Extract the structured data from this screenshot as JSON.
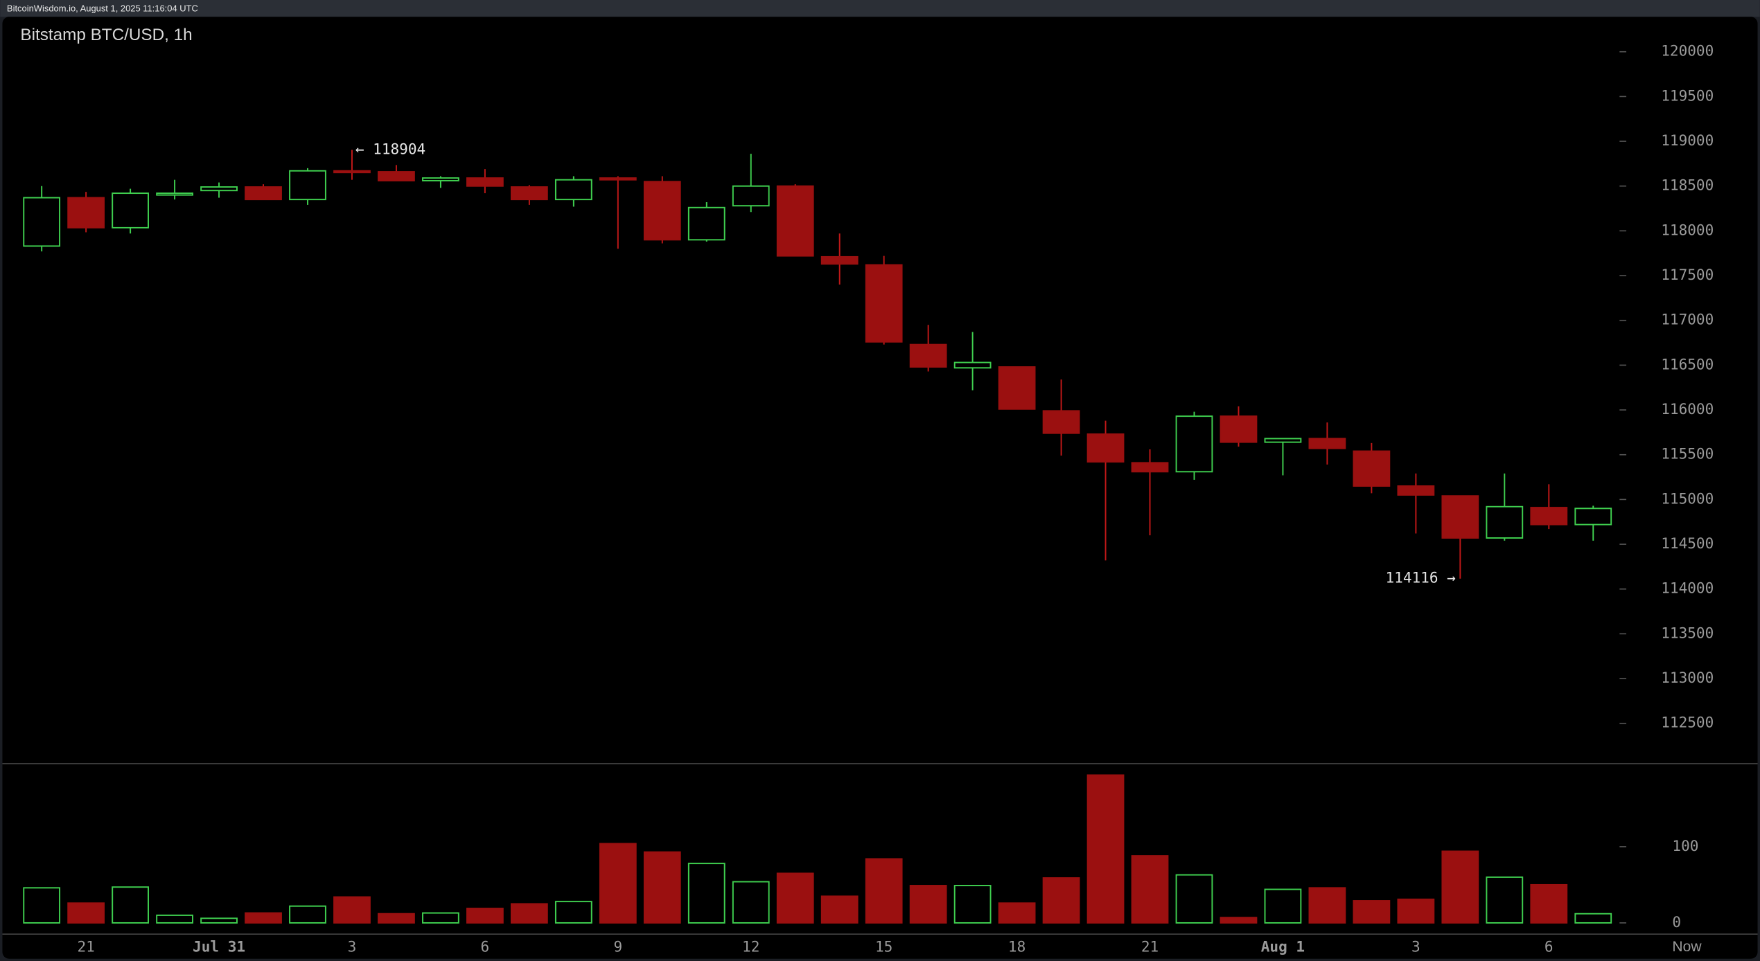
{
  "chart_data": {
    "type": "candlestick",
    "header": "BitcoinWisdom.io, August 1, 2025 11:16:04 UTC",
    "title": "Bitstamp BTC/USD, 1h",
    "categories": [
      null,
      "21",
      null,
      null,
      "Jul 31",
      null,
      null,
      "3",
      null,
      null,
      "6",
      null,
      null,
      "9",
      null,
      null,
      "12",
      null,
      null,
      "15",
      null,
      null,
      "18",
      null,
      null,
      "21",
      null,
      null,
      "Aug 1",
      null,
      null,
      "3",
      null,
      null,
      "6",
      null
    ],
    "now_label": "Now",
    "open": [
      117830,
      118370,
      118035,
      118400,
      118450,
      118490,
      118350,
      118670,
      118660,
      118560,
      118590,
      118490,
      118350,
      118590,
      118550,
      117900,
      118280,
      118500,
      117710,
      117620,
      116730,
      116470,
      116480,
      115990,
      115730,
      115410,
      115310,
      115930,
      115640,
      115680,
      115540,
      115150,
      115040,
      114570,
      114910,
      114720
    ],
    "high": [
      118500,
      118435,
      118470,
      118570,
      118540,
      118520,
      118700,
      118904,
      118735,
      118610,
      118690,
      118510,
      118610,
      118610,
      118610,
      118320,
      118860,
      118520,
      117970,
      117720,
      116950,
      116870,
      116480,
      116340,
      115880,
      115560,
      115980,
      116040,
      115680,
      115860,
      115630,
      115290,
      115040,
      115290,
      115170,
      114930
    ],
    "low": [
      117770,
      117984,
      117970,
      118350,
      118370,
      118350,
      118290,
      118570,
      118560,
      118480,
      118420,
      118290,
      118270,
      117800,
      117860,
      117880,
      118210,
      117720,
      117400,
      116730,
      116430,
      116220,
      116010,
      115490,
      114320,
      114600,
      115220,
      115590,
      115270,
      115390,
      115070,
      114620,
      114116,
      114540,
      114670,
      114540
    ],
    "close": [
      118370,
      118035,
      118420,
      118420,
      118490,
      118350,
      118670,
      118660,
      118560,
      118590,
      118500,
      118350,
      118570,
      118570,
      117900,
      118260,
      118500,
      117720,
      117630,
      116760,
      116480,
      116530,
      116010,
      115740,
      115420,
      115310,
      115930,
      115640,
      115680,
      115570,
      115150,
      115050,
      114570,
      114920,
      114720,
      114900
    ],
    "volume": [
      46,
      26,
      47,
      10,
      6,
      13,
      22,
      34,
      12,
      13,
      19,
      25,
      28,
      104,
      93,
      78,
      54,
      65,
      35,
      84,
      49,
      49,
      26,
      59,
      194,
      88,
      63,
      7,
      44,
      46,
      29,
      31,
      94,
      60,
      50,
      12
    ],
    "up_color": "#3fcf4f",
    "down_color": "#9b1010",
    "ylim": [
      112050,
      120390
    ],
    "yticks": [
      112500,
      113000,
      113500,
      114000,
      114500,
      115000,
      115500,
      116000,
      116500,
      117000,
      117500,
      118000,
      118500,
      119000,
      119500,
      120000
    ],
    "volume_ylim": [
      0,
      209
    ],
    "volume_yticks": [
      0,
      100
    ],
    "high_label": "← 118904",
    "low_label": "114116 →"
  }
}
